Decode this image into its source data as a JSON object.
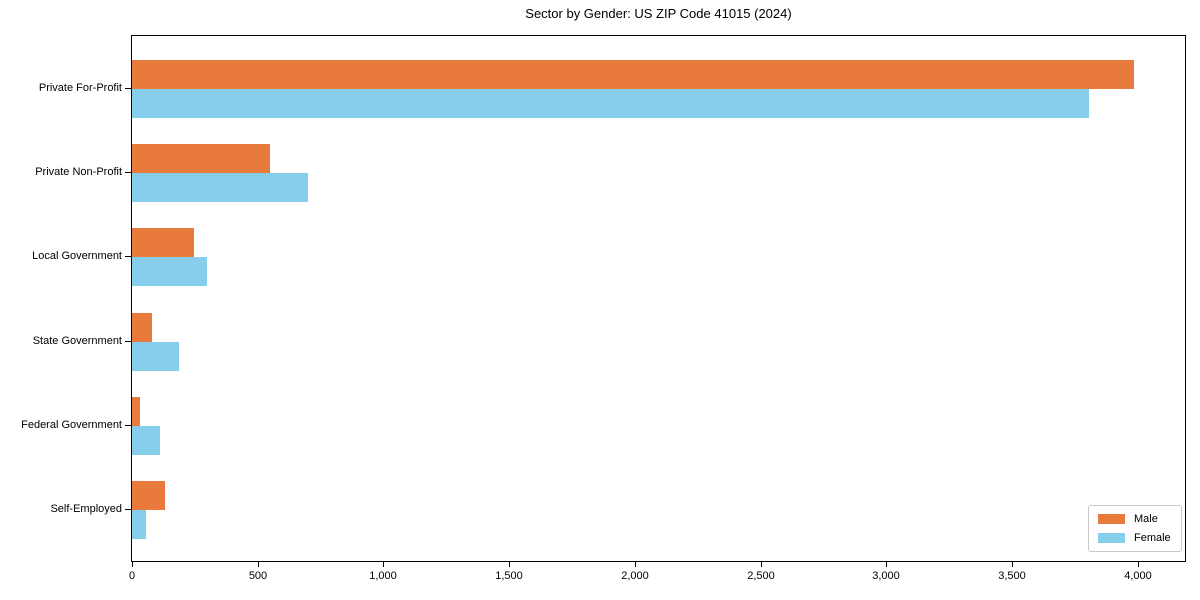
{
  "figure": {
    "title": "Sector by Gender: US ZIP Code 41015 (2024)"
  },
  "chart_data": {
    "type": "bar",
    "orientation": "horizontal",
    "title": "Sector by Gender: US ZIP Code 41015 (2024)",
    "xlabel": "",
    "ylabel": "",
    "categories": [
      "Private For-Profit",
      "Private Non-Profit",
      "Local Government",
      "State Government",
      "Federal Government",
      "Self-Employed"
    ],
    "series": [
      {
        "name": "Male",
        "color": "#E87A3C",
        "values": [
          3985,
          550,
          245,
          80,
          30,
          130
        ]
      },
      {
        "name": "Female",
        "color": "#87CEEB",
        "values": [
          3805,
          700,
          300,
          185,
          110,
          55
        ]
      }
    ],
    "xlim": [
      0,
      4188
    ],
    "xticks": [
      0,
      500,
      1000,
      1500,
      2000,
      2500,
      3000,
      3500,
      4000
    ],
    "xtick_labels": [
      "0",
      "500",
      "1,000",
      "1,500",
      "2,000",
      "2,500",
      "3,000",
      "3,500",
      "4,000"
    ],
    "grid": false,
    "legend": {
      "position": "lower right"
    }
  }
}
